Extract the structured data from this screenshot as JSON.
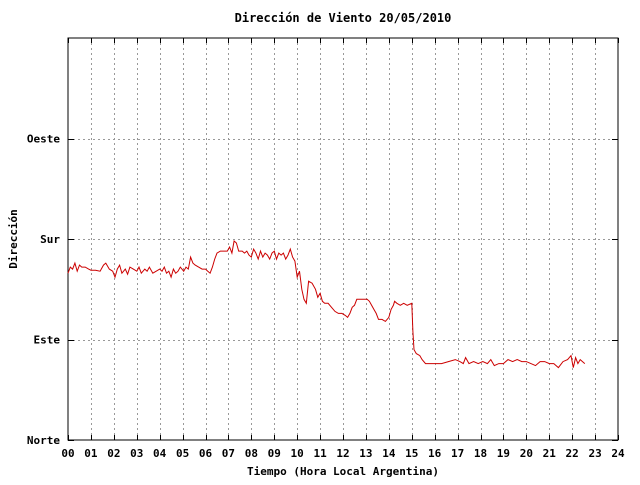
{
  "chart_data": {
    "type": "line",
    "title": "Dirección de Viento 20/05/2010",
    "xlabel": "Tiempo (Hora Local Argentina)",
    "ylabel": "Dirección",
    "xlim": [
      0,
      24
    ],
    "ylim": [
      0,
      400
    ],
    "x_ticks": [
      "00",
      "01",
      "02",
      "03",
      "04",
      "05",
      "06",
      "07",
      "08",
      "09",
      "10",
      "11",
      "12",
      "13",
      "14",
      "15",
      "16",
      "17",
      "18",
      "19",
      "20",
      "21",
      "22",
      "23",
      "24"
    ],
    "y_ticks": [
      {
        "value": 0,
        "label": "Norte"
      },
      {
        "value": 100,
        "label": "Este"
      },
      {
        "value": 200,
        "label": "Sur"
      },
      {
        "value": 300,
        "label": "Oeste"
      }
    ],
    "grid": true,
    "colors": {
      "series": "#cc0000",
      "grid": "#999999",
      "axis": "#000000"
    },
    "series": [
      {
        "points": [
          [
            0.0,
            166
          ],
          [
            0.1,
            172
          ],
          [
            0.2,
            170
          ],
          [
            0.3,
            176
          ],
          [
            0.4,
            168
          ],
          [
            0.5,
            174
          ],
          [
            0.6,
            172
          ],
          [
            0.75,
            172
          ],
          [
            0.9,
            170
          ],
          [
            1.0,
            169
          ],
          [
            1.2,
            169
          ],
          [
            1.4,
            168
          ],
          [
            1.55,
            174
          ],
          [
            1.65,
            176
          ],
          [
            1.8,
            170
          ],
          [
            1.95,
            168
          ],
          [
            2.05,
            162
          ],
          [
            2.15,
            170
          ],
          [
            2.25,
            174
          ],
          [
            2.35,
            166
          ],
          [
            2.5,
            170
          ],
          [
            2.6,
            165
          ],
          [
            2.7,
            172
          ],
          [
            2.85,
            170
          ],
          [
            3.0,
            168
          ],
          [
            3.1,
            172
          ],
          [
            3.2,
            166
          ],
          [
            3.35,
            170
          ],
          [
            3.45,
            168
          ],
          [
            3.55,
            172
          ],
          [
            3.7,
            166
          ],
          [
            3.85,
            168
          ],
          [
            4.0,
            170
          ],
          [
            4.1,
            168
          ],
          [
            4.2,
            172
          ],
          [
            4.3,
            166
          ],
          [
            4.4,
            168
          ],
          [
            4.5,
            162
          ],
          [
            4.6,
            170
          ],
          [
            4.7,
            166
          ],
          [
            4.8,
            168
          ],
          [
            4.9,
            172
          ],
          [
            5.05,
            168
          ],
          [
            5.15,
            172
          ],
          [
            5.25,
            170
          ],
          [
            5.35,
            182
          ],
          [
            5.45,
            176
          ],
          [
            5.55,
            174
          ],
          [
            5.7,
            172
          ],
          [
            5.85,
            170
          ],
          [
            6.0,
            170
          ],
          [
            6.1,
            168
          ],
          [
            6.2,
            166
          ],
          [
            6.3,
            172
          ],
          [
            6.4,
            180
          ],
          [
            6.5,
            186
          ],
          [
            6.65,
            188
          ],
          [
            6.8,
            188
          ],
          [
            6.95,
            188
          ],
          [
            7.05,
            192
          ],
          [
            7.15,
            186
          ],
          [
            7.25,
            198
          ],
          [
            7.35,
            196
          ],
          [
            7.45,
            188
          ],
          [
            7.6,
            188
          ],
          [
            7.7,
            186
          ],
          [
            7.8,
            188
          ],
          [
            7.9,
            184
          ],
          [
            8.0,
            182
          ],
          [
            8.1,
            190
          ],
          [
            8.2,
            186
          ],
          [
            8.3,
            180
          ],
          [
            8.4,
            188
          ],
          [
            8.5,
            182
          ],
          [
            8.6,
            186
          ],
          [
            8.7,
            184
          ],
          [
            8.8,
            180
          ],
          [
            8.9,
            186
          ],
          [
            9.0,
            188
          ],
          [
            9.1,
            180
          ],
          [
            9.2,
            186
          ],
          [
            9.3,
            184
          ],
          [
            9.4,
            186
          ],
          [
            9.5,
            180
          ],
          [
            9.6,
            184
          ],
          [
            9.7,
            190
          ],
          [
            9.8,
            182
          ],
          [
            9.9,
            178
          ],
          [
            10.0,
            162
          ],
          [
            10.1,
            168
          ],
          [
            10.2,
            150
          ],
          [
            10.3,
            140
          ],
          [
            10.4,
            136
          ],
          [
            10.5,
            158
          ],
          [
            10.65,
            156
          ],
          [
            10.8,
            150
          ],
          [
            10.9,
            142
          ],
          [
            11.0,
            146
          ],
          [
            11.1,
            138
          ],
          [
            11.2,
            136
          ],
          [
            11.35,
            136
          ],
          [
            11.5,
            132
          ],
          [
            11.65,
            128
          ],
          [
            11.8,
            126
          ],
          [
            11.95,
            126
          ],
          [
            12.1,
            124
          ],
          [
            12.2,
            122
          ],
          [
            12.3,
            126
          ],
          [
            12.4,
            132
          ],
          [
            12.5,
            134
          ],
          [
            12.6,
            140
          ],
          [
            12.75,
            140
          ],
          [
            12.9,
            140
          ],
          [
            13.05,
            140
          ],
          [
            13.15,
            138
          ],
          [
            13.25,
            134
          ],
          [
            13.35,
            130
          ],
          [
            13.45,
            126
          ],
          [
            13.55,
            120
          ],
          [
            13.7,
            120
          ],
          [
            13.85,
            118
          ],
          [
            14.0,
            122
          ],
          [
            14.1,
            130
          ],
          [
            14.2,
            134
          ],
          [
            14.25,
            138
          ],
          [
            14.35,
            136
          ],
          [
            14.5,
            134
          ],
          [
            14.65,
            136
          ],
          [
            14.8,
            134
          ],
          [
            15.0,
            136
          ],
          [
            15.05,
            108
          ],
          [
            15.1,
            90
          ],
          [
            15.2,
            86
          ],
          [
            15.35,
            84
          ],
          [
            15.45,
            80
          ],
          [
            15.6,
            76
          ],
          [
            15.8,
            76
          ],
          [
            16.0,
            76
          ],
          [
            16.3,
            76
          ],
          [
            16.6,
            78
          ],
          [
            16.9,
            80
          ],
          [
            17.1,
            78
          ],
          [
            17.25,
            76
          ],
          [
            17.35,
            82
          ],
          [
            17.5,
            76
          ],
          [
            17.7,
            78
          ],
          [
            17.9,
            76
          ],
          [
            18.1,
            78
          ],
          [
            18.3,
            76
          ],
          [
            18.45,
            80
          ],
          [
            18.6,
            74
          ],
          [
            18.8,
            76
          ],
          [
            19.0,
            76
          ],
          [
            19.2,
            80
          ],
          [
            19.4,
            78
          ],
          [
            19.6,
            80
          ],
          [
            19.8,
            78
          ],
          [
            20.0,
            78
          ],
          [
            20.2,
            76
          ],
          [
            20.4,
            74
          ],
          [
            20.6,
            78
          ],
          [
            20.8,
            78
          ],
          [
            21.0,
            76
          ],
          [
            21.2,
            76
          ],
          [
            21.4,
            72
          ],
          [
            21.6,
            78
          ],
          [
            21.8,
            80
          ],
          [
            21.95,
            84
          ],
          [
            22.05,
            72
          ],
          [
            22.15,
            82
          ],
          [
            22.25,
            76
          ],
          [
            22.35,
            80
          ],
          [
            22.45,
            78
          ],
          [
            22.55,
            76
          ]
        ]
      }
    ]
  }
}
